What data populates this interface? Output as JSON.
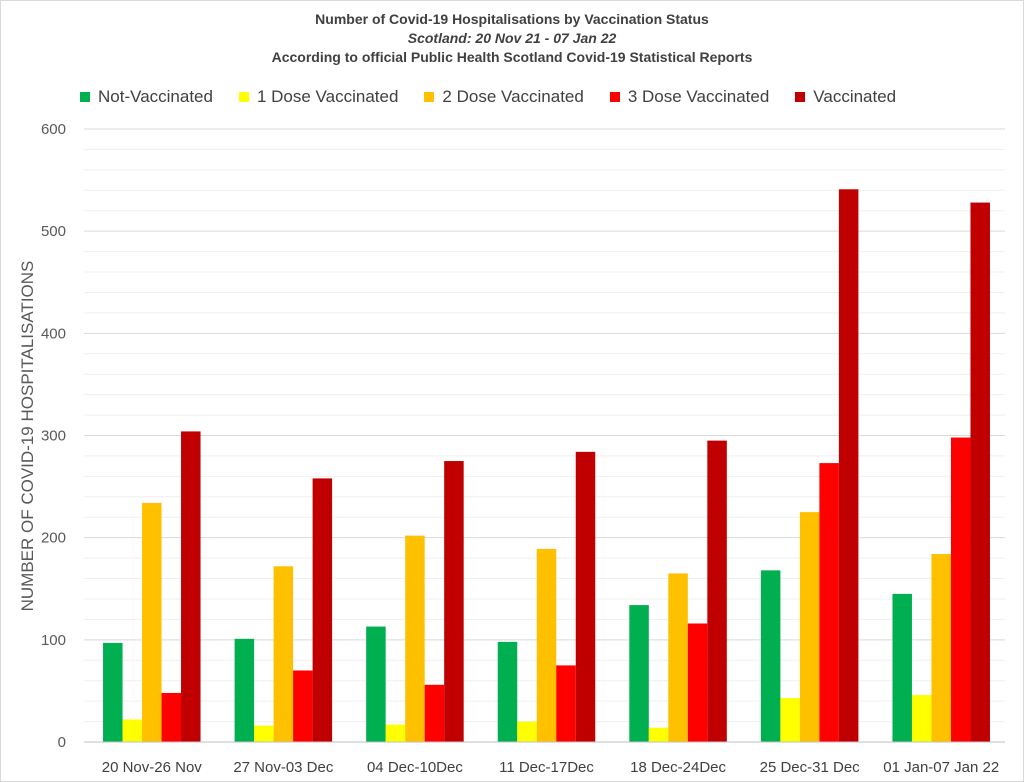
{
  "chart_data": {
    "type": "bar",
    "title": "Number of Covid-19 Hospitalisations by Vaccination Status",
    "subtitle": "Scotland: 20 Nov 21 - 07 Jan 22",
    "subtitle2": "According to official Public Health Scotland Covid-19 Statistical Reports",
    "xlabel": "",
    "ylabel": "NUMBER OF COVID-19 HOSPITALISATIONS",
    "ylim": [
      0,
      600
    ],
    "yticks": [
      0,
      100,
      200,
      300,
      400,
      500,
      600
    ],
    "grid": true,
    "legend_position": "top",
    "categories": [
      "20 Nov-26 Nov",
      "27 Nov-03 Dec",
      "04 Dec-10Dec",
      "11 Dec-17Dec",
      "18 Dec-24Dec",
      "25 Dec-31 Dec",
      "01 Jan-07 Jan 22"
    ],
    "series": [
      {
        "name": "Not-Vaccinated",
        "color": "#00b050",
        "values": [
          97,
          101,
          113,
          98,
          134,
          168,
          145
        ]
      },
      {
        "name": "1 Dose Vaccinated",
        "color": "#ffff00",
        "values": [
          22,
          16,
          17,
          20,
          14,
          43,
          46
        ]
      },
      {
        "name": "2 Dose Vaccinated",
        "color": "#ffc000",
        "values": [
          234,
          172,
          202,
          189,
          165,
          225,
          184
        ]
      },
      {
        "name": "3 Dose Vaccinated",
        "color": "#ff0000",
        "values": [
          48,
          70,
          56,
          75,
          116,
          273,
          298
        ]
      },
      {
        "name": "Vaccinated",
        "color": "#c00000",
        "values": [
          304,
          258,
          275,
          284,
          295,
          541,
          528
        ]
      }
    ]
  }
}
